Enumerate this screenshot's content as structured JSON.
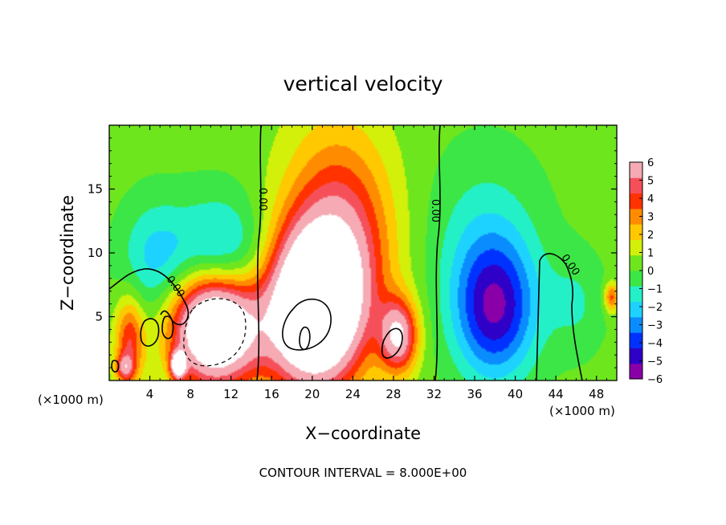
{
  "chart_data": {
    "type": "heatmap",
    "title": "vertical velocity",
    "xlabel": "X−coordinate",
    "ylabel": "Z−coordinate",
    "x_unit_left": "(×1000 m)",
    "x_unit_right": "(×1000 m)",
    "footer": "CONTOUR INTERVAL = 8.000E+00",
    "xlim": [
      0,
      50
    ],
    "ylim": [
      0,
      20
    ],
    "x_ticks": [
      4,
      8,
      12,
      16,
      20,
      24,
      28,
      32,
      36,
      40,
      44,
      48
    ],
    "x_tick_labels": [
      "4",
      "8",
      "12",
      "16",
      "20",
      "24",
      "28",
      "32",
      "36",
      "40",
      "44",
      "48"
    ],
    "y_ticks": [
      5,
      10,
      15
    ],
    "y_tick_labels": [
      "5",
      "10",
      "15"
    ],
    "colorbar": {
      "min": -6,
      "max": 6,
      "ticks": [
        6,
        5,
        4,
        3,
        2,
        1,
        0,
        -1,
        -2,
        -3,
        -4,
        -5,
        -6
      ],
      "tick_labels": [
        "6",
        "5",
        "4",
        "3",
        "2",
        "1",
        "0",
        "−1",
        "−2",
        "−3",
        "−4",
        "−5",
        "−6"
      ],
      "colors": [
        "#8a00a8",
        "#2e00c8",
        "#0032ff",
        "#0a8cff",
        "#1ed2ff",
        "#24f0c8",
        "#3ce646",
        "#6ee61e",
        "#d2f00a",
        "#ffc800",
        "#ff8c00",
        "#ff3200",
        "#f5505a",
        "#f5aab4"
      ]
    },
    "background_value": 0.3,
    "features": [
      {
        "x": 2,
        "z": 3,
        "sx": 1.0,
        "sz": 2.5,
        "v": 4
      },
      {
        "x": 4.5,
        "z": 9.5,
        "sx": 2.4,
        "sz": 3.2,
        "v": -2.2
      },
      {
        "x": 6.8,
        "z": 1.2,
        "sx": 0.5,
        "sz": 0.7,
        "v": 8
      },
      {
        "x": 10.5,
        "z": 4.5,
        "sx": 3.0,
        "sz": 3.2,
        "v": 12
      },
      {
        "x": 11,
        "z": 8.5,
        "sx": 3.2,
        "sz": 3.5,
        "v": -4.5
      },
      {
        "x": 20,
        "z": 5.5,
        "sx": 3.2,
        "sz": 4.2,
        "v": 11
      },
      {
        "x": 23,
        "z": 10,
        "sx": 3.5,
        "sz": 5.5,
        "v": 3.5
      },
      {
        "x": 22,
        "z": 14,
        "sx": 4.0,
        "sz": 6.0,
        "v": 1.5
      },
      {
        "x": 28.5,
        "z": 3.5,
        "sx": 1.3,
        "sz": 2.0,
        "v": 6
      },
      {
        "x": 38,
        "z": 5.5,
        "sx": 2.8,
        "sz": 3.8,
        "v": -5
      },
      {
        "x": 37,
        "z": 11,
        "sx": 4.0,
        "sz": 5.0,
        "v": -1.5
      },
      {
        "x": 46,
        "z": 6,
        "sx": 2.0,
        "sz": 2.8,
        "v": -1.2
      },
      {
        "x": 49.5,
        "z": 6.5,
        "sx": 0.5,
        "sz": 0.8,
        "v": 3.5
      },
      {
        "x": 1.5,
        "z": 1,
        "sx": 0.6,
        "sz": 0.7,
        "v": 3.5
      }
    ],
    "contour_labels": [
      {
        "text": "0.00",
        "x": 15.2,
        "z": 14.2,
        "rotate": 90
      },
      {
        "text": "0.00",
        "x": 32.2,
        "z": 13.3,
        "rotate": 90
      },
      {
        "text": "0.00",
        "x": 6.6,
        "z": 7.4,
        "rotate": 55
      },
      {
        "text": "0.00",
        "x": 45.5,
        "z": 9.1,
        "rotate": 55
      }
    ]
  }
}
